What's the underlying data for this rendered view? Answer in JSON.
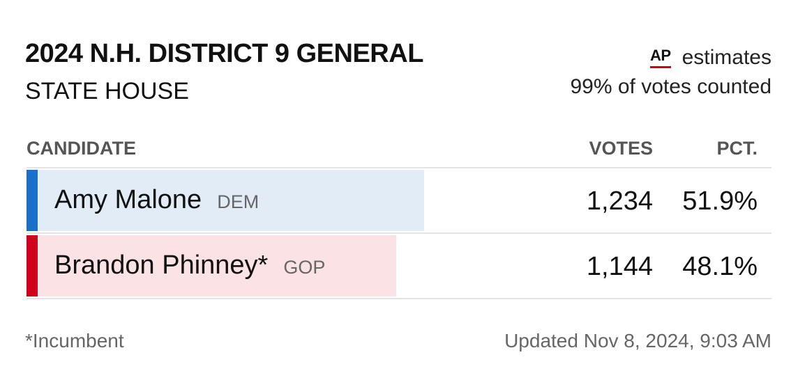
{
  "header": {
    "title": "2024 N.H. DISTRICT 9 GENERAL",
    "subtitle": "STATE HOUSE",
    "source_logo": "AP",
    "source_label": "estimates",
    "reporting": "99% of votes counted"
  },
  "table": {
    "columns": {
      "candidate": "CANDIDATE",
      "votes": "VOTES",
      "pct": "PCT."
    },
    "rows": [
      {
        "name": "Amy Malone",
        "party": "DEM",
        "votes": "1,234",
        "pct": "51.9%",
        "share": 0.519,
        "accent_color": "#1a6fc9",
        "fill_color": "#e2ecf7"
      },
      {
        "name": "Brandon Phinney*",
        "party": "GOP",
        "votes": "1,144",
        "pct": "48.1%",
        "share": 0.481,
        "accent_color": "#d0021b",
        "fill_color": "#fbe3e5"
      }
    ]
  },
  "footer": {
    "footnote": "*Incumbent",
    "updated": "Updated Nov 8, 2024, 9:03 AM"
  }
}
